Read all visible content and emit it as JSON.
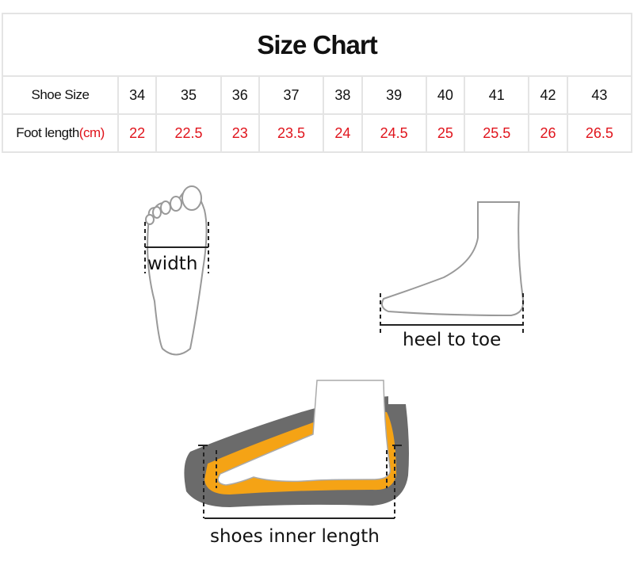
{
  "title": "Size Chart",
  "rows": {
    "shoe_size": {
      "label": "Shoe Size",
      "values": [
        "34",
        "35",
        "36",
        "37",
        "38",
        "39",
        "40",
        "41",
        "42",
        "43"
      ]
    },
    "foot_length": {
      "label": "Foot length",
      "unit": "(cm)",
      "values": [
        "22",
        "22.5",
        "23",
        "23.5",
        "24",
        "24.5",
        "25",
        "25.5",
        "26",
        "26.5"
      ]
    }
  },
  "diagrams": {
    "width_label": "width",
    "heel_to_toe_label": "heel to toe",
    "inner_length_label": "shoes inner length"
  },
  "colors": {
    "value_red": "#e0141c",
    "insole_orange": "#f5a315",
    "sole_gray": "#6b6b6b"
  }
}
